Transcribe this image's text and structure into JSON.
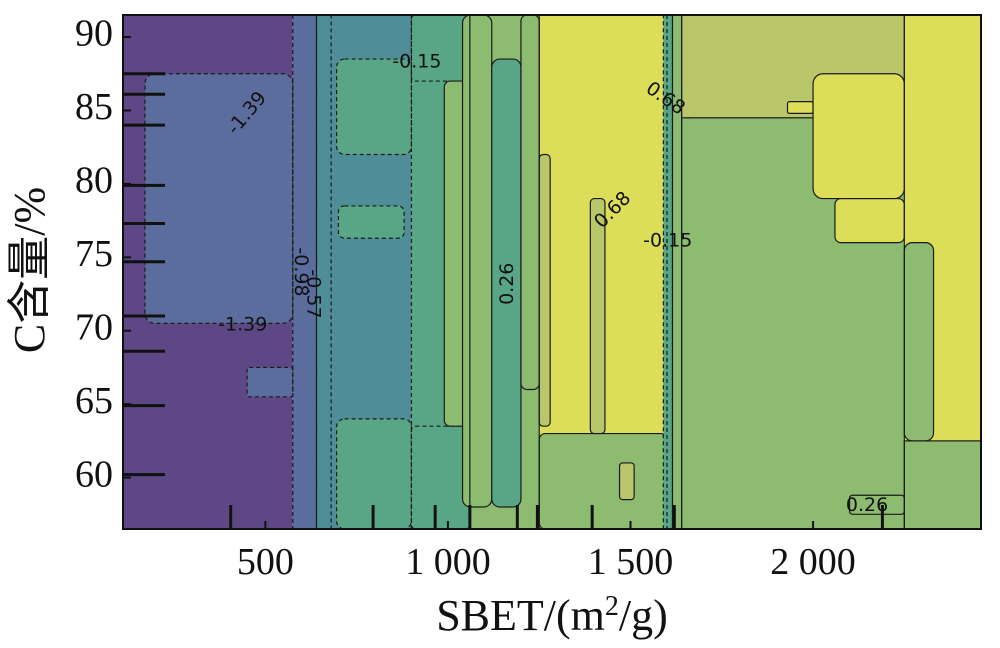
{
  "chart_data": {
    "type": "heatmap",
    "subtype": "filled-contour",
    "xlabel": "SBET/(m²/g)",
    "xlabel_parts": {
      "base": "SBET/(m",
      "sup": "2",
      "tail": "/g)"
    },
    "ylabel": "C含量/%",
    "xlim": [
      110,
      2460
    ],
    "ylim": [
      56.5,
      91.5
    ],
    "x_ticks": [
      500,
      1000,
      1500,
      2000
    ],
    "x_tick_labels": [
      "500",
      "1 000",
      "1 500",
      "2 000"
    ],
    "y_ticks": [
      60,
      65,
      70,
      75,
      80,
      85,
      90
    ],
    "y_tick_labels": [
      "60",
      "65",
      "70",
      "75",
      "80",
      "85",
      "90"
    ],
    "colormap": "viridis",
    "levels": [
      -1.39,
      -0.98,
      -0.57,
      -0.15,
      0.26,
      0.68
    ],
    "level_colors": [
      "#5d4784",
      "#5b6d9d",
      "#4f8e98",
      "#59a686",
      "#8dbb6f",
      "#b9c76a",
      "#dcdd58"
    ],
    "bands": [
      {
        "x_range": [
          110,
          575
        ],
        "level": "< -1.39",
        "color": "#5d4784"
      },
      {
        "x_range": [
          575,
          640
        ],
        "level": "-1.39 to -0.98",
        "color": "#5b6d9d"
      },
      {
        "x_range": [
          640,
          900
        ],
        "level": "-0.57 to -0.15",
        "color": "#4f8e98"
      },
      {
        "x_range": [
          900,
          1060
        ],
        "level": "-0.15 to 0.26",
        "color": "#59a686"
      },
      {
        "x_range": [
          1060,
          1250
        ],
        "level": "0.26 to 0.68",
        "color": "#8dbb6f"
      },
      {
        "x_range": [
          1250,
          1600
        ],
        "level": "> 0.68",
        "color": "#dcdd58"
      },
      {
        "x_range": [
          1600,
          2250
        ],
        "level": "0.26 to 0.68",
        "color": "#8dbb6f"
      },
      {
        "x_range": [
          2250,
          2460
        ],
        "level": "> 0.68",
        "color": "#dcdd58"
      }
    ],
    "contour_labels": [
      {
        "text": "-0.15",
        "x": 915,
        "y": 88.3,
        "angle": 0
      },
      {
        "text": "-1.39",
        "x": 450,
        "y": 84.8,
        "angle": -50
      },
      {
        "text": "0.68",
        "x": 1595,
        "y": 85.8,
        "angle": 35
      },
      {
        "text": "0.68",
        "x": 1452,
        "y": 78.2,
        "angle": -45
      },
      {
        "text": "-0.15",
        "x": 1602,
        "y": 76.1,
        "angle": 0
      },
      {
        "text": "0.26",
        "x": 1163,
        "y": 73.2,
        "angle": -90
      },
      {
        "text": "-0.98",
        "x": 596,
        "y": 74.0,
        "angle": 90
      },
      {
        "text": "-0.57",
        "x": 631,
        "y": 72.5,
        "angle": 90
      },
      {
        "text": "-1.39",
        "x": 438,
        "y": 70.4,
        "angle": 0
      },
      {
        "text": "0.26",
        "x": 2148,
        "y": 58.1,
        "angle": 0
      }
    ],
    "rug_x": [
      405,
      795,
      965,
      1060,
      1190,
      1245,
      1395,
      1620,
      2190
    ],
    "rug_y": [
      60.2,
      64.9,
      68.6,
      71.0,
      74.7,
      77.3,
      79.9,
      84.0,
      86.1,
      87.5
    ]
  }
}
